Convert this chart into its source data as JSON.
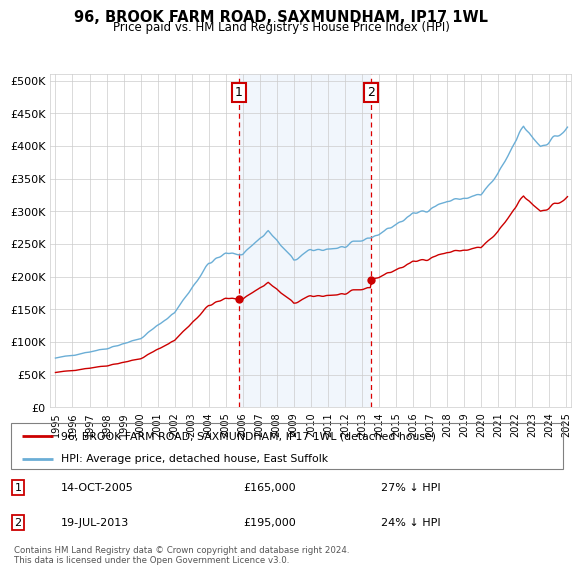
{
  "title": "96, BROOK FARM ROAD, SAXMUNDHAM, IP17 1WL",
  "subtitle": "Price paid vs. HM Land Registry's House Price Index (HPI)",
  "legend_line1": "96, BROOK FARM ROAD, SAXMUNDHAM, IP17 1WL (detached house)",
  "legend_line2": "HPI: Average price, detached house, East Suffolk",
  "annotation1_date": "14-OCT-2005",
  "annotation1_price": "£165,000",
  "annotation1_pct": "27% ↓ HPI",
  "annotation1_year": 2005.79,
  "annotation1_value": 165000,
  "annotation2_date": "19-JUL-2013",
  "annotation2_price": "£195,000",
  "annotation2_pct": "24% ↓ HPI",
  "annotation2_year": 2013.55,
  "annotation2_value": 195000,
  "footer": "Contains HM Land Registry data © Crown copyright and database right 2024.\nThis data is licensed under the Open Government Licence v3.0.",
  "hpi_color": "#6baed6",
  "price_color": "#cc0000",
  "vline_color": "#dd0000",
  "shade_color": "#ddeeff",
  "ymin": 0,
  "ymax": 510000,
  "yticks": [
    0,
    50000,
    100000,
    150000,
    200000,
    250000,
    300000,
    350000,
    400000,
    450000,
    500000
  ],
  "xlim_left": 1994.7,
  "xlim_right": 2025.3
}
